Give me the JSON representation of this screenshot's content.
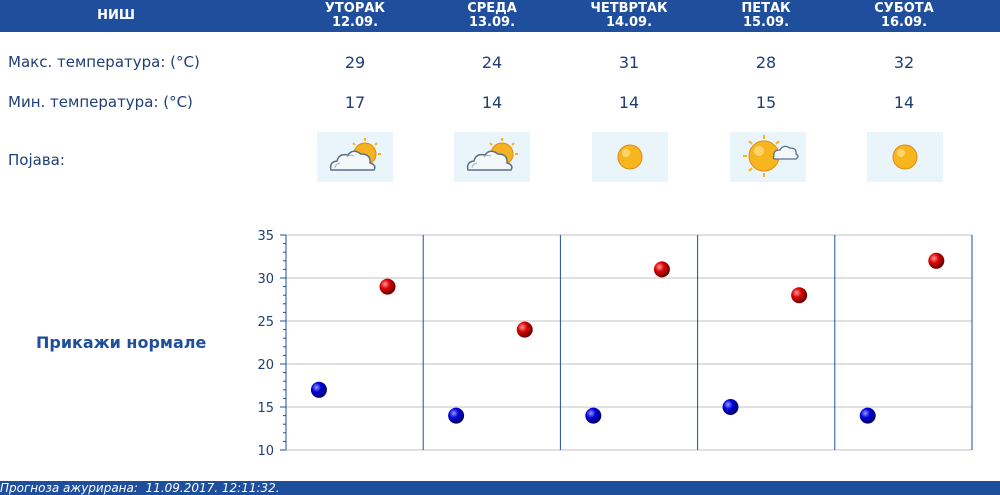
{
  "city": "НИШ",
  "days": [
    {
      "name": "УТОРАК",
      "date": "12.09.",
      "max": "29",
      "min": "17",
      "icon": "cloud-sun-icon"
    },
    {
      "name": "СРЕДА",
      "date": "13.09.",
      "max": "24",
      "min": "14",
      "icon": "cloud-sun-icon"
    },
    {
      "name": "ЧЕТВРТАК",
      "date": "14.09.",
      "max": "31",
      "min": "14",
      "icon": "sun-icon"
    },
    {
      "name": "ПЕТАК",
      "date": "15.09.",
      "max": "28",
      "min": "15",
      "icon": "sun-cloud-icon"
    },
    {
      "name": "СУБОТА",
      "date": "16.09.",
      "max": "32",
      "min": "14",
      "icon": "sun-icon"
    }
  ],
  "labels": {
    "max": "Макс. температура: (°C)",
    "min": "Мин. температура: (°C)",
    "phenomenon": "Појава:"
  },
  "normals_link": "Прикажи нормале",
  "footer": "Прогноза ажурирана:  11.09.2017. 12:11:32.",
  "colors": {
    "header": "#1f4f9c",
    "text": "#1f3e77",
    "max_point": "#cc0000",
    "min_point": "#0000cc",
    "grid": "#c0c0c0",
    "separator": "#1f4f9c"
  },
  "chart_data": {
    "type": "scatter",
    "ylim": [
      10,
      35
    ],
    "yticks": [
      "35",
      "30",
      "25",
      "20",
      "15",
      "10"
    ],
    "series": [
      {
        "values": [
          29,
          24,
          31,
          28,
          32
        ]
      },
      {
        "values": [
          17,
          14,
          14,
          15,
          14
        ]
      }
    ]
  }
}
